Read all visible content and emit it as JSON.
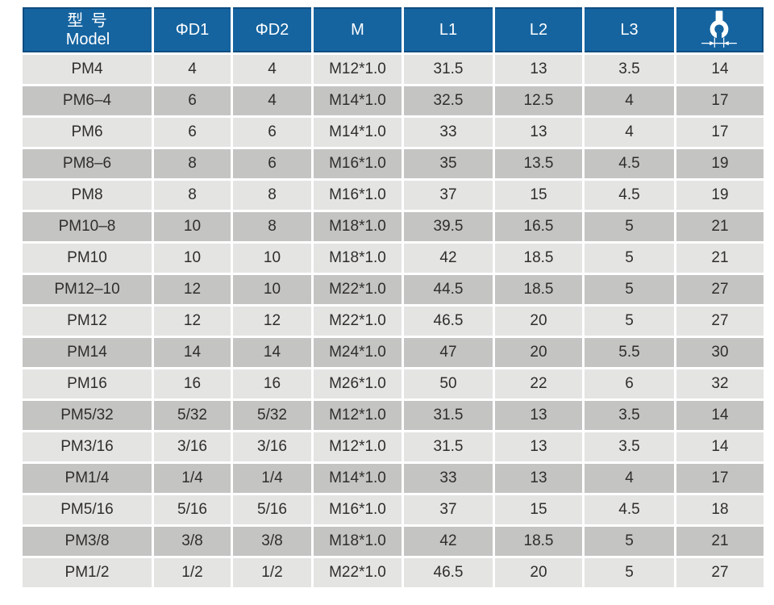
{
  "colors": {
    "header-bg": "#1564a0",
    "header-edge": "#0e4d80",
    "row-light": "#e4e4e3",
    "row-dark": "#c4c4c3",
    "cell-text": "#2f2e2c",
    "header-text": "#ffffff",
    "page-bg": "#ffffff"
  },
  "table": {
    "columns": [
      {
        "key": "model",
        "label_zh": "型 号",
        "label_en": "Model"
      },
      {
        "key": "d1",
        "label": "ΦD1"
      },
      {
        "key": "d2",
        "label": "ΦD2"
      },
      {
        "key": "m",
        "label": "M"
      },
      {
        "key": "l1",
        "label": "L1"
      },
      {
        "key": "l2",
        "label": "L2"
      },
      {
        "key": "l3",
        "label": "L3"
      },
      {
        "key": "wrench",
        "label": "",
        "icon": "wrench-width-across-flats-icon"
      }
    ],
    "rows": [
      [
        "PM4",
        "4",
        "4",
        "M12*1.0",
        "31.5",
        "13",
        "3.5",
        "14"
      ],
      [
        "PM6–4",
        "6",
        "4",
        "M14*1.0",
        "32.5",
        "12.5",
        "4",
        "17"
      ],
      [
        "PM6",
        "6",
        "6",
        "M14*1.0",
        "33",
        "13",
        "4",
        "17"
      ],
      [
        "PM8–6",
        "8",
        "6",
        "M16*1.0",
        "35",
        "13.5",
        "4.5",
        "19"
      ],
      [
        "PM8",
        "8",
        "8",
        "M16*1.0",
        "37",
        "15",
        "4.5",
        "19"
      ],
      [
        "PM10–8",
        "10",
        "8",
        "M18*1.0",
        "39.5",
        "16.5",
        "5",
        "21"
      ],
      [
        "PM10",
        "10",
        "10",
        "M18*1.0",
        "42",
        "18.5",
        "5",
        "21"
      ],
      [
        "PM12–10",
        "12",
        "10",
        "M22*1.0",
        "44.5",
        "18.5",
        "5",
        "27"
      ],
      [
        "PM12",
        "12",
        "12",
        "M22*1.0",
        "46.5",
        "20",
        "5",
        "27"
      ],
      [
        "PM14",
        "14",
        "14",
        "M24*1.0",
        "47",
        "20",
        "5.5",
        "30"
      ],
      [
        "PM16",
        "16",
        "16",
        "M26*1.0",
        "50",
        "22",
        "6",
        "32"
      ],
      [
        "PM5/32",
        "5/32",
        "5/32",
        "M12*1.0",
        "31.5",
        "13",
        "3.5",
        "14"
      ],
      [
        "PM3/16",
        "3/16",
        "3/16",
        "M12*1.0",
        "31.5",
        "13",
        "3.5",
        "14"
      ],
      [
        "PM1/4",
        "1/4",
        "1/4",
        "M14*1.0",
        "33",
        "13",
        "4",
        "17"
      ],
      [
        "PM5/16",
        "5/16",
        "5/16",
        "M16*1.0",
        "37",
        "15",
        "4.5",
        "18"
      ],
      [
        "PM3/8",
        "3/8",
        "3/8",
        "M18*1.0",
        "42",
        "18.5",
        "5",
        "21"
      ],
      [
        "PM1/2",
        "1/2",
        "1/2",
        "M22*1.0",
        "46.5",
        "20",
        "5",
        "27"
      ]
    ]
  }
}
